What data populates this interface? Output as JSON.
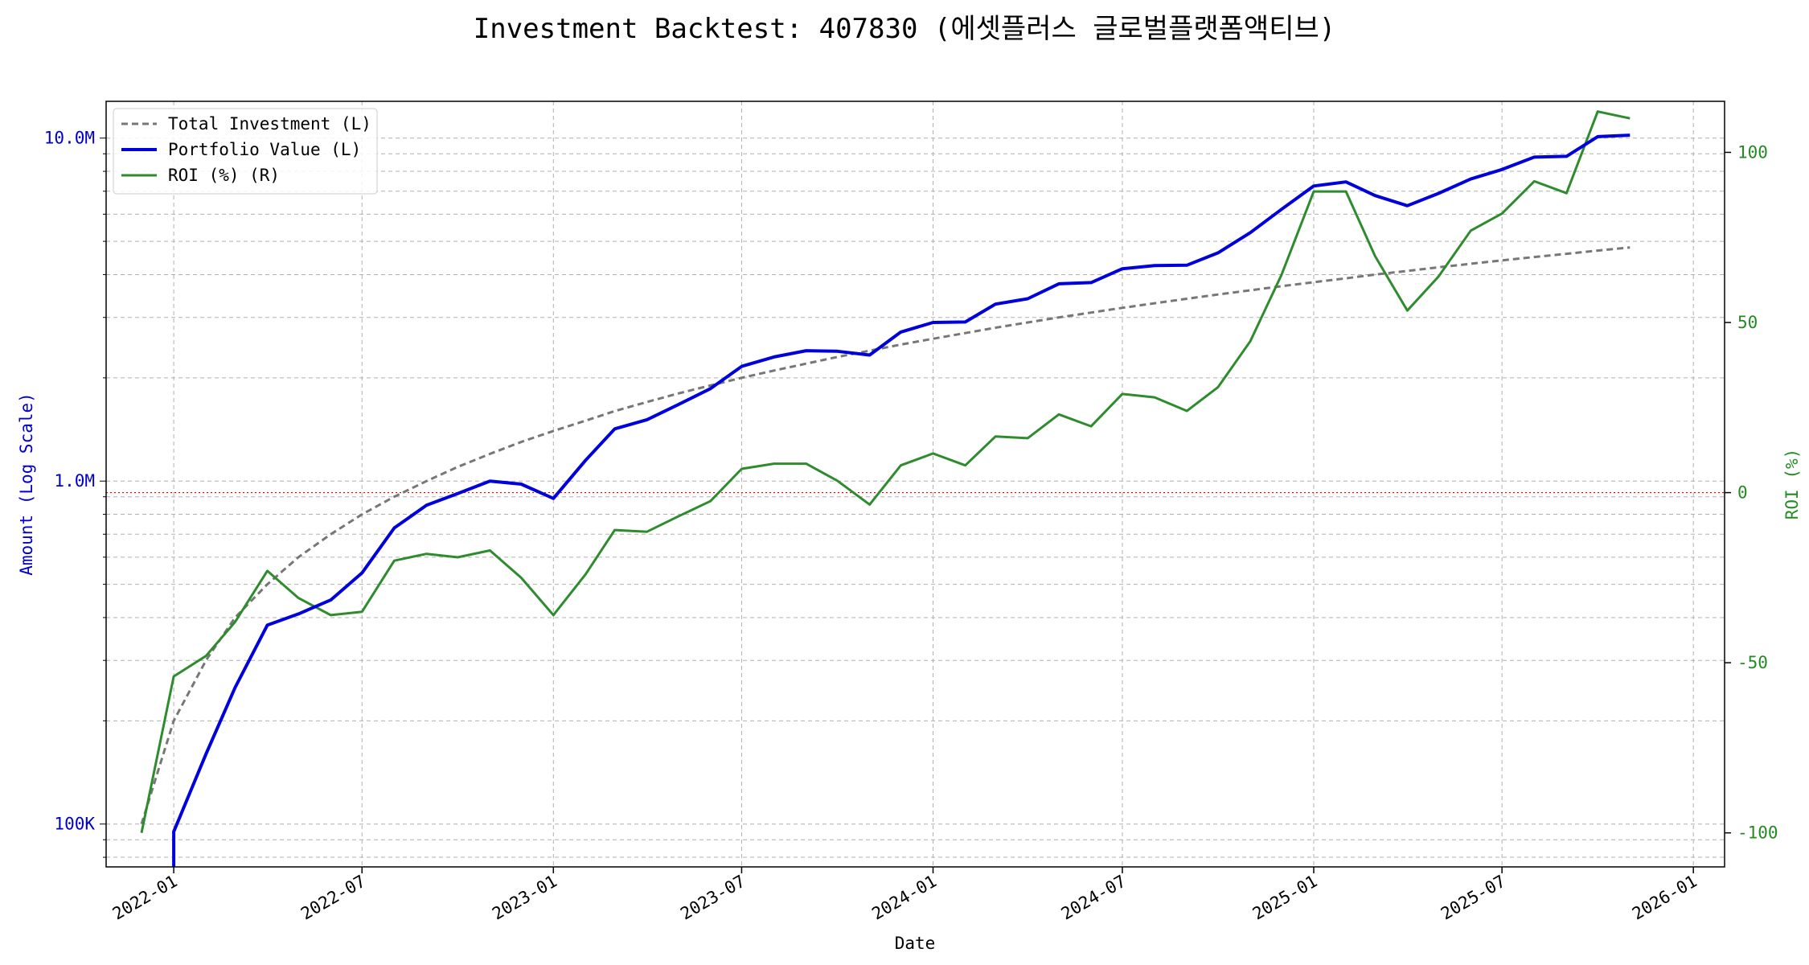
{
  "chart_data": {
    "type": "line",
    "title": "Investment Backtest: 407830 (에셋플러스 글로벌플랫폼액티브)",
    "xlabel": "Date",
    "ylabel_left": "Amount (Log Scale)",
    "ylabel_right": "ROI (%)",
    "y_left_scale": "log",
    "y_left_range": [
      75000,
      12800000
    ],
    "y_right_range": [
      -110,
      115
    ],
    "x_range": [
      "2021-10-28",
      "2026-01-31"
    ],
    "grid": true,
    "legend_position": "top-left",
    "x_ticks": [
      "2022-01",
      "2022-07",
      "2023-01",
      "2023-07",
      "2024-01",
      "2024-07",
      "2025-01",
      "2025-07",
      "2026-01"
    ],
    "y_left_ticks": [
      {
        "value": 100000,
        "label": "100K"
      },
      {
        "value": 1000000,
        "label": "1.0M"
      },
      {
        "value": 10000000,
        "label": "10.0M"
      }
    ],
    "y_right_ticks": [
      -100,
      -50,
      0,
      50,
      100
    ],
    "zero_line": {
      "axis": "right",
      "value": 0,
      "color": "#e00000"
    },
    "dates": [
      "2021-12-01",
      "2022-01-01",
      "2022-02-01",
      "2022-03-01",
      "2022-04-01",
      "2022-05-01",
      "2022-06-01",
      "2022-07-01",
      "2022-08-01",
      "2022-09-01",
      "2022-10-01",
      "2022-11-01",
      "2022-12-01",
      "2023-01-01",
      "2023-02-01",
      "2023-03-01",
      "2023-04-01",
      "2023-05-01",
      "2023-06-01",
      "2023-07-01",
      "2023-08-01",
      "2023-09-01",
      "2023-10-01",
      "2023-11-01",
      "2023-12-01",
      "2024-01-01",
      "2024-02-01",
      "2024-03-01",
      "2024-04-01",
      "2024-05-01",
      "2024-06-01",
      "2024-07-01",
      "2024-08-01",
      "2024-09-01",
      "2024-10-01",
      "2024-11-01",
      "2024-12-01",
      "2025-01-01",
      "2025-02-01",
      "2025-03-01",
      "2025-04-01",
      "2025-05-01",
      "2025-06-01",
      "2025-07-01",
      "2025-08-01",
      "2025-09-01",
      "2025-10-01",
      "2025-11-01"
    ],
    "series": [
      {
        "name": "Total Investment (L)",
        "axis": "left",
        "color": "#777777",
        "style": "dashed",
        "values": [
          100000,
          200000,
          300000,
          400000,
          500000,
          600000,
          700000,
          800000,
          900000,
          1000000,
          1100000,
          1200000,
          1300000,
          1400000,
          1500000,
          1600000,
          1700000,
          1800000,
          1900000,
          2000000,
          2100000,
          2200000,
          2300000,
          2400000,
          2500000,
          2600000,
          2700000,
          2800000,
          2900000,
          3000000,
          3100000,
          3200000,
          3300000,
          3400000,
          3500000,
          3600000,
          3700000,
          3800000,
          3900000,
          4000000,
          4100000,
          4200000,
          4300000,
          4400000,
          4500000,
          4600000,
          4700000,
          4800000
        ]
      },
      {
        "name": "Portfolio Value (L)",
        "axis": "left",
        "color": "#0000dd",
        "style": "solid",
        "values": [
          null,
          95000,
          160000,
          250000,
          380000,
          410000,
          450000,
          540000,
          730000,
          850000,
          920000,
          1000000,
          980000,
          890000,
          1150000,
          1420000,
          1510000,
          1670000,
          1860000,
          2160000,
          2300000,
          2400000,
          2390000,
          2330000,
          2720000,
          2900000,
          2910000,
          3280000,
          3400000,
          3760000,
          3790000,
          4160000,
          4250000,
          4260000,
          4630000,
          5300000,
          6200000,
          7250000,
          7450000,
          6800000,
          6350000,
          6900000,
          7600000,
          8100000,
          8800000,
          8850000,
          10100000,
          10200000
        ]
      },
      {
        "name": "ROI (%) (R)",
        "axis": "right",
        "color": "#2e8b2e",
        "style": "solid",
        "values": [
          -100,
          -54,
          -48,
          -38,
          -23,
          -31,
          -36,
          -35,
          -20,
          -18,
          -19,
          -17,
          -25,
          -36,
          -24,
          -11,
          -11.5,
          -7,
          -2.5,
          7,
          8.5,
          8.5,
          3.5,
          -3.5,
          8,
          11.5,
          8,
          16.5,
          16,
          23,
          19.5,
          29,
          28,
          24,
          31,
          44.5,
          64,
          88.5,
          88.5,
          69.5,
          53.5,
          63.5,
          77,
          82,
          91.5,
          88,
          112,
          110
        ]
      }
    ]
  }
}
